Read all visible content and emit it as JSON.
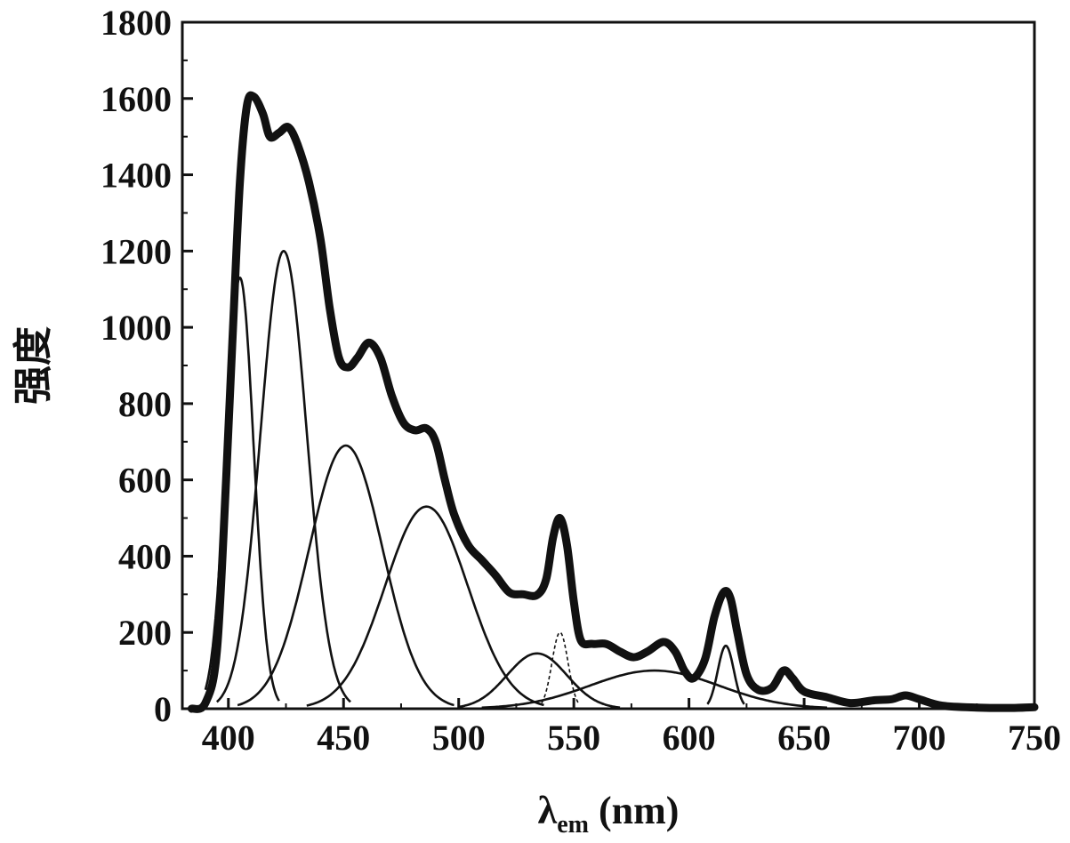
{
  "chart_data": {
    "type": "line",
    "xlabel": "λ",
    "xlabel_sub": "em",
    "xlabel_unit": " (nm)",
    "ylabel": "强度",
    "xlim": [
      380,
      750
    ],
    "ylim": [
      0,
      1800
    ],
    "xticks": [
      400,
      450,
      500,
      550,
      600,
      650,
      700,
      750
    ],
    "yticks": [
      0,
      200,
      400,
      600,
      800,
      1000,
      1200,
      1400,
      1600,
      1800
    ],
    "grid": false,
    "legend": "none",
    "series": [
      {
        "style": "bold",
        "points": [
          [
            384,
            0
          ],
          [
            390,
            15
          ],
          [
            395,
            150
          ],
          [
            399,
            600
          ],
          [
            402,
            1000
          ],
          [
            405,
            1380
          ],
          [
            408,
            1580
          ],
          [
            411,
            1605
          ],
          [
            415,
            1560
          ],
          [
            418,
            1500
          ],
          [
            422,
            1510
          ],
          [
            426,
            1525
          ],
          [
            430,
            1480
          ],
          [
            435,
            1380
          ],
          [
            440,
            1230
          ],
          [
            444,
            1050
          ],
          [
            448,
            920
          ],
          [
            452,
            895
          ],
          [
            456,
            920
          ],
          [
            461,
            960
          ],
          [
            466,
            920
          ],
          [
            471,
            820
          ],
          [
            476,
            750
          ],
          [
            481,
            730
          ],
          [
            486,
            735
          ],
          [
            490,
            700
          ],
          [
            494,
            600
          ],
          [
            498,
            510
          ],
          [
            504,
            430
          ],
          [
            510,
            390
          ],
          [
            516,
            350
          ],
          [
            522,
            305
          ],
          [
            528,
            300
          ],
          [
            534,
            298
          ],
          [
            538,
            340
          ],
          [
            541,
            450
          ],
          [
            544,
            500
          ],
          [
            547,
            430
          ],
          [
            550,
            280
          ],
          [
            553,
            180
          ],
          [
            558,
            170
          ],
          [
            564,
            170
          ],
          [
            570,
            150
          ],
          [
            576,
            135
          ],
          [
            582,
            150
          ],
          [
            589,
            175
          ],
          [
            594,
            150
          ],
          [
            598,
            100
          ],
          [
            602,
            80
          ],
          [
            607,
            130
          ],
          [
            611,
            240
          ],
          [
            615,
            305
          ],
          [
            618,
            290
          ],
          [
            621,
            200
          ],
          [
            625,
            90
          ],
          [
            630,
            50
          ],
          [
            636,
            55
          ],
          [
            641,
            100
          ],
          [
            645,
            80
          ],
          [
            650,
            45
          ],
          [
            660,
            30
          ],
          [
            670,
            15
          ],
          [
            680,
            22
          ],
          [
            688,
            25
          ],
          [
            694,
            35
          ],
          [
            700,
            25
          ],
          [
            710,
            8
          ],
          [
            725,
            3
          ],
          [
            740,
            2
          ],
          [
            750,
            4
          ]
        ]
      },
      {
        "style": "gaussian",
        "amplitude": 1130,
        "center": 405,
        "sigma": 6,
        "range": [
          390,
          422
        ]
      },
      {
        "style": "gaussian",
        "amplitude": 1200,
        "center": 424,
        "sigma": 10,
        "range": [
          395,
          453
        ]
      },
      {
        "style": "gaussian",
        "amplitude": 690,
        "center": 451,
        "sigma": 16,
        "range": [
          404,
          498
        ]
      },
      {
        "style": "gaussian",
        "amplitude": 530,
        "center": 486,
        "sigma": 18,
        "range": [
          434,
          537
        ]
      },
      {
        "style": "gaussian",
        "amplitude": 145,
        "center": 534,
        "sigma": 13,
        "range": [
          500,
          570
        ]
      },
      {
        "style": "gaussian-dashed",
        "amplitude": 200,
        "center": 544,
        "sigma": 3.5,
        "range": [
          536,
          552
        ]
      },
      {
        "style": "gaussian",
        "amplitude": 100,
        "center": 585,
        "sigma": 28,
        "range": [
          510,
          660
        ]
      },
      {
        "style": "gaussian",
        "amplitude": 165,
        "center": 616,
        "sigma": 3.5,
        "range": [
          608,
          624
        ]
      }
    ]
  }
}
